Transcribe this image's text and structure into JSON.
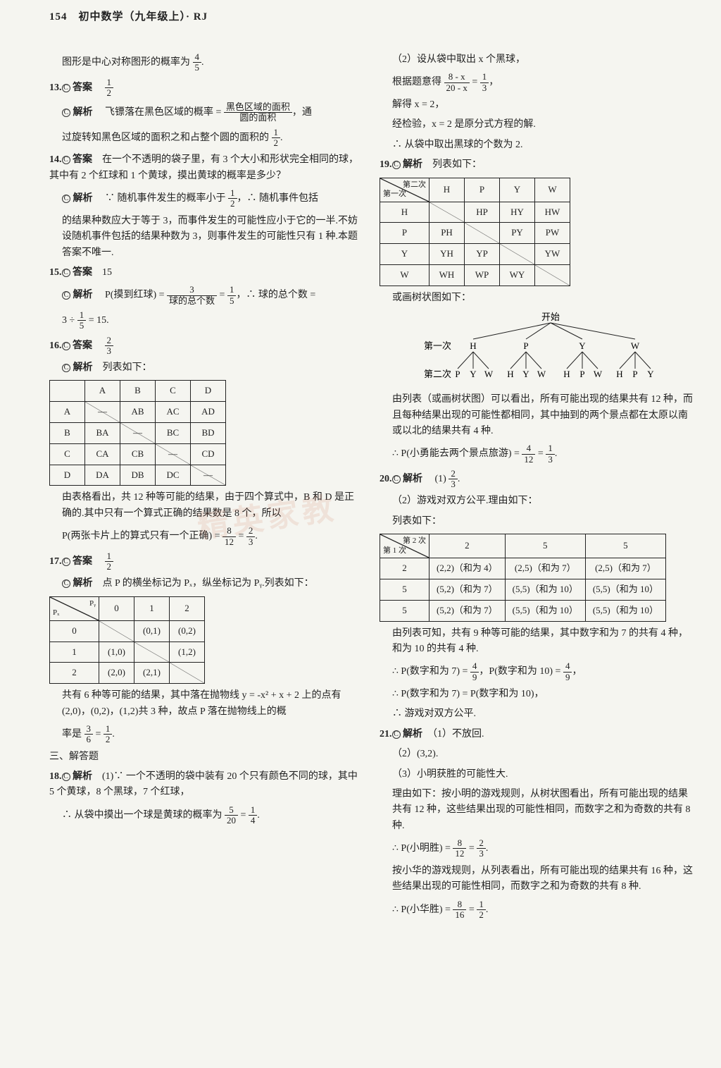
{
  "page_header": "154　初中数学（九年级上）· RJ",
  "watermark_text": "精英家教",
  "colors": {
    "text": "#222222",
    "border": "#222222",
    "bg": "#f5f5f0",
    "watermark": "rgba(200,90,60,0.12)"
  },
  "left": {
    "p12b": "图形是中心对称图形的概率为",
    "p12b_frac": {
      "n": "4",
      "d": "5"
    },
    "p12b_tail": ".",
    "p13": {
      "num": "13.",
      "ans_label": "答案",
      "ans_frac": {
        "n": "1",
        "d": "2"
      }
    },
    "p13_ana_label": "解析",
    "p13_ana_1a": "飞镖落在黑色区域的概率 =",
    "p13_ana_1_frac": {
      "n": "黑色区域的面积",
      "d": "圆的面积"
    },
    "p13_ana_1b": "，通",
    "p13_ana_2": "过旋转知黑色区域的面积之和占整个圆的面积的",
    "p13_ana_2_frac": {
      "n": "1",
      "d": "2"
    },
    "p13_ana_2_tail": ".",
    "p14": {
      "num": "14.",
      "ans_label": "答案",
      "ans_text": "在一个不透明的袋子里，有 3 个大小和形状完全相同的球，其中有 2 个红球和 1 个黄球，摸出黄球的概率是多少？"
    },
    "p14_ana_label": "解析",
    "p14_ana_1a": "∵ 随机事件发生的概率小于",
    "p14_ana_1_frac": {
      "n": "1",
      "d": "2"
    },
    "p14_ana_1b": "，∴ 随机事件包括",
    "p14_ana_2": "的结果种数应大于等于 3，而事件发生的可能性应小于它的一半.不妨设随机事件包括的结果种数为 3，则事件发生的可能性只有 1 种.本题答案不唯一.",
    "p15": {
      "num": "15.",
      "ans_label": "答案",
      "ans_text": "15"
    },
    "p15_ana_label": "解析",
    "p15_ana_1a": "P(摸到红球) =",
    "p15_ana_1_frac1": {
      "n": "3",
      "d": "球的总个数"
    },
    "p15_ana_1_eq": "=",
    "p15_ana_1_frac2": {
      "n": "1",
      "d": "5"
    },
    "p15_ana_1b": "，∴ 球的总个数 =",
    "p15_ana_2a": "3 ÷",
    "p15_ana_2_frac": {
      "n": "1",
      "d": "5"
    },
    "p15_ana_2b": "= 15.",
    "p16": {
      "num": "16.",
      "ans_label": "答案",
      "ans_frac": {
        "n": "2",
        "d": "3"
      }
    },
    "p16_ana_label": "解析",
    "p16_ana_intro": "列表如下：",
    "t16": {
      "cols": [
        "",
        "A",
        "B",
        "C",
        "D"
      ],
      "rows": [
        [
          "A",
          "—",
          "AB",
          "AC",
          "AD"
        ],
        [
          "B",
          "BA",
          "—",
          "BC",
          "BD"
        ],
        [
          "C",
          "CA",
          "CB",
          "—",
          "CD"
        ],
        [
          "D",
          "DA",
          "DB",
          "DC",
          "—"
        ]
      ],
      "slash_cells": [
        [
          0,
          1
        ],
        [
          1,
          2
        ],
        [
          2,
          3
        ],
        [
          3,
          4
        ]
      ]
    },
    "p16_after1": "由表格看出，共 12 种等可能的结果，由于四个算式中，B 和 D 是正确的.其中只有一个算式正确的结果数是 8 个，所以",
    "p16_after2a": "P(两张卡片上的算式只有一个正确) =",
    "p16_after2_fracs": [
      {
        "n": "8",
        "d": "12"
      },
      {
        "n": "2",
        "d": "3"
      }
    ],
    "p17": {
      "num": "17.",
      "ans_label": "答案",
      "ans_frac": {
        "n": "1",
        "d": "2"
      }
    },
    "p17_ana_label": "解析",
    "p17_ana_intro": "点 P 的横坐标记为 Pₓ，纵坐标记为 Pᵧ.列表如下：",
    "t17": {
      "diag_tr": "Pᵧ",
      "diag_bl": "Pₓ",
      "cols": [
        "0",
        "1",
        "2"
      ],
      "rows": [
        [
          "0",
          "",
          "(0,1)",
          "(0,2)"
        ],
        [
          "1",
          "(1,0)",
          "",
          "(1,2)"
        ],
        [
          "2",
          "(2,0)",
          "(2,1)",
          ""
        ]
      ],
      "slash_cells": [
        [
          0,
          1
        ],
        [
          1,
          2
        ],
        [
          2,
          3
        ]
      ]
    },
    "p17_after1": "共有 6 种等可能的结果，其中落在抛物线 y = -x² + x + 2 上的点有(2,0)，(0,2)，(1,2)共 3 种，故点 P 落在抛物线上的概",
    "p17_after2a": "率是",
    "p17_after2_fracs": [
      {
        "n": "3",
        "d": "6"
      },
      {
        "n": "1",
        "d": "2"
      }
    ],
    "section3": "三、解答题",
    "p18": {
      "num": "18.",
      "ana_label": "解析"
    },
    "p18_1": "(1)∵ 一个不透明的袋中装有 20 个只有颜色不同的球，其中 5 个黄球，8 个黑球，7 个红球，",
    "p18_2a": "∴ 从袋中摸出一个球是黄球的概率为",
    "p18_2_fracs": [
      {
        "n": "5",
        "d": "20"
      },
      {
        "n": "1",
        "d": "4"
      }
    ]
  },
  "right": {
    "p18c_1": "（2）设从袋中取出 x 个黑球，",
    "p18c_2a": "根据题意得",
    "p18c_2_frac1": {
      "n": "8 - x",
      "d": "20 - x"
    },
    "p18c_2_eq": "=",
    "p18c_2_frac2": {
      "n": "1",
      "d": "3"
    },
    "p18c_2b": "，",
    "p18c_3": "解得 x = 2，",
    "p18c_4": "经检验，x = 2 是原分式方程的解.",
    "p18c_5": "∴ 从袋中取出黑球的个数为 2.",
    "p19": {
      "num": "19.",
      "ana_label": "解析",
      "intro": "列表如下："
    },
    "t19": {
      "diag_tr": "第二次",
      "diag_bl": "第一次",
      "cols": [
        "H",
        "P",
        "Y",
        "W"
      ],
      "rows": [
        [
          "H",
          "",
          "HP",
          "HY",
          "HW"
        ],
        [
          "P",
          "PH",
          "",
          "PY",
          "PW"
        ],
        [
          "Y",
          "YH",
          "YP",
          "",
          "YW"
        ],
        [
          "W",
          "WH",
          "WP",
          "WY",
          ""
        ]
      ],
      "slash_cells": [
        [
          0,
          1
        ],
        [
          1,
          2
        ],
        [
          2,
          3
        ],
        [
          3,
          4
        ]
      ]
    },
    "p19_tree_label": "或画树状图如下：",
    "tree": {
      "root": "开始",
      "l1_label": "第一次",
      "l1": [
        "H",
        "P",
        "Y",
        "W"
      ],
      "l2_label": "第二次",
      "l2": [
        [
          "P",
          "Y",
          "W"
        ],
        [
          "H",
          "Y",
          "W"
        ],
        [
          "H",
          "P",
          "W"
        ],
        [
          "H",
          "P",
          "Y"
        ]
      ]
    },
    "p19_after1": "由列表（或画树状图）可以看出，所有可能出现的结果共有 12 种，而且每种结果出现的可能性都相同，其中抽到的两个景点都在太原以南或以北的结果共有 4 种.",
    "p19_after2a": "∴ P(小勇能去两个景点旅游) =",
    "p19_after2_fracs": [
      {
        "n": "4",
        "d": "12"
      },
      {
        "n": "1",
        "d": "3"
      }
    ],
    "p20": {
      "num": "20.",
      "ana_label": "解析"
    },
    "p20_1a": "(1)",
    "p20_1_frac": {
      "n": "2",
      "d": "3"
    },
    "p20_2": "（2）游戏对双方公平.理由如下：",
    "p20_3": "列表如下：",
    "t20": {
      "diag_tr": "第 2 次",
      "diag_bl": "第 1 次",
      "cols": [
        "2",
        "5",
        "5"
      ],
      "rows": [
        [
          "2",
          "(2,2)（和为 4）",
          "(2,5)（和为 7）",
          "(2,5)（和为 7）"
        ],
        [
          "5",
          "(5,2)（和为 7）",
          "(5,5)（和为 10）",
          "(5,5)（和为 10）"
        ],
        [
          "5",
          "(5,2)（和为 7）",
          "(5,5)（和为 10）",
          "(5,5)（和为 10）"
        ]
      ]
    },
    "p20_after1": "由列表可知，共有 9 种等可能的结果，其中数字和为 7 的共有 4 种，和为 10 的共有 4 种.",
    "p20_after2a": "∴ P(数字和为 7) =",
    "p20_after2_frac1": {
      "n": "4",
      "d": "9"
    },
    "p20_after2b": "，P(数字和为 10) =",
    "p20_after2_frac2": {
      "n": "4",
      "d": "9"
    },
    "p20_after2c": "，",
    "p20_after3": "∴ P(数字和为 7) = P(数字和为 10)，",
    "p20_after4": "∴ 游戏对双方公平.",
    "p21": {
      "num": "21.",
      "ana_label": "解析"
    },
    "p21_1": "（1）不放回.",
    "p21_2": "（2）(3,2).",
    "p21_3": "（3）小明获胜的可能性大.",
    "p21_4": "理由如下：按小明的游戏规则，从树状图看出，所有可能出现的结果共有 12 种，这些结果出现的可能性相同，而数字之和为奇数的共有 8 种.",
    "p21_5a": "∴ P(小明胜) =",
    "p21_5_fracs": [
      {
        "n": "8",
        "d": "12"
      },
      {
        "n": "2",
        "d": "3"
      }
    ],
    "p21_6": "按小华的游戏规则，从列表看出，所有可能出现的结果共有 16 种，这些结果出现的可能性相同，而数字之和为奇数的共有 8 种.",
    "p21_7a": "∴ P(小华胜) =",
    "p21_7_fracs": [
      {
        "n": "8",
        "d": "16"
      },
      {
        "n": "1",
        "d": "2"
      }
    ]
  }
}
